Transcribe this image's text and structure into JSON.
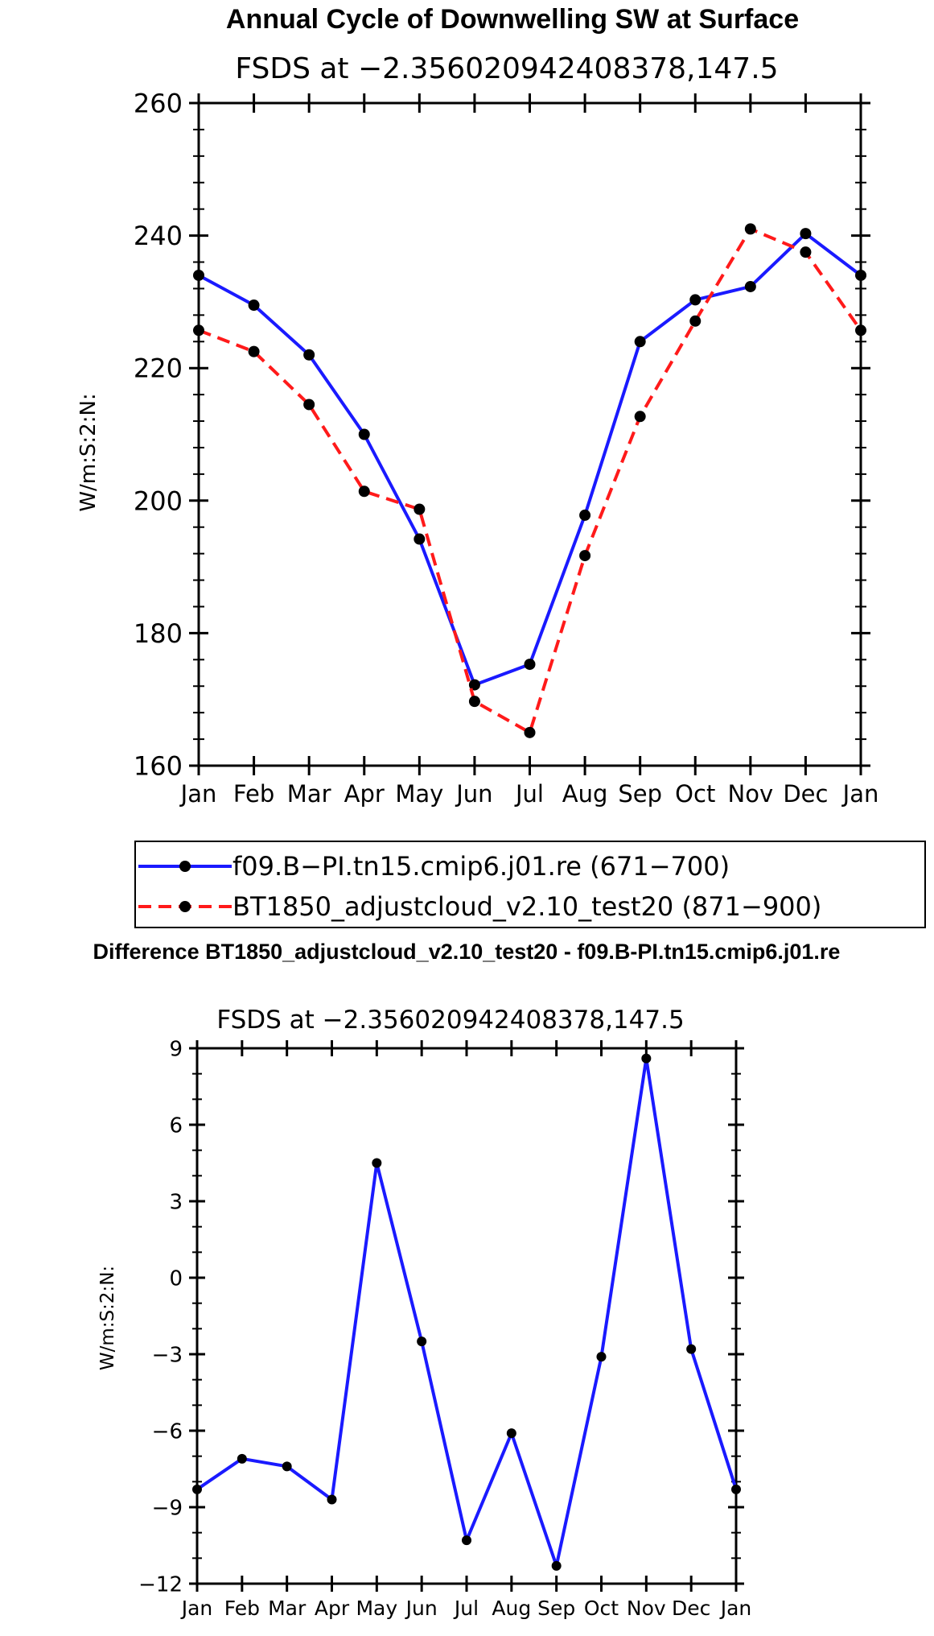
{
  "colors": {
    "series1": "#1a1aff",
    "series2": "#ff1a1a",
    "marker": "#000000",
    "diff": "#1a1aff"
  },
  "chart_data": [
    {
      "type": "line",
      "title": "Annual Cycle of Downwelling SW at Surface",
      "subtitle": "FSDS at −2.356020942408378,147.5",
      "ylabel": "W/m:S:2:N:",
      "ylim": [
        160,
        260
      ],
      "yticks": [
        "160",
        "180",
        "200",
        "220",
        "240",
        "260"
      ],
      "categories": [
        "Jan",
        "Feb",
        "Mar",
        "Apr",
        "May",
        "Jun",
        "Jul",
        "Aug",
        "Sep",
        "Oct",
        "Nov",
        "Dec",
        "Jan"
      ],
      "series": [
        {
          "name": "f09.B−PI.tn15.cmip6.j01.re (671−700)",
          "style": "solid",
          "values": [
            234.0,
            229.5,
            222.0,
            210.0,
            194.2,
            172.2,
            175.3,
            197.8,
            224.0,
            230.3,
            232.3,
            240.3,
            234.0
          ]
        },
        {
          "name": "BT1850_adjustcloud_v2.10_test20 (871−900)",
          "style": "dashed",
          "values": [
            225.7,
            222.5,
            214.5,
            201.4,
            198.7,
            169.7,
            165.0,
            191.7,
            212.7,
            227.1,
            241.0,
            237.5,
            225.7
          ]
        }
      ]
    },
    {
      "type": "line",
      "title": "Difference BT1850_adjustcloud_v2.10_test20 - f09.B-PI.tn15.cmip6.j01.re",
      "subtitle": "FSDS at −2.356020942408378,147.5",
      "ylabel": "W/m:S:2:N:",
      "ylim": [
        -12,
        9
      ],
      "yticks": [
        "−12",
        "−9",
        "−6",
        "−3",
        "0",
        "3",
        "6",
        "9"
      ],
      "categories": [
        "Jan",
        "Feb",
        "Mar",
        "Apr",
        "May",
        "Jun",
        "Jul",
        "Aug",
        "Sep",
        "Oct",
        "Nov",
        "Dec",
        "Jan"
      ],
      "series": [
        {
          "name": "difference",
          "style": "solid",
          "values": [
            -8.3,
            -7.1,
            -7.4,
            -8.7,
            4.5,
            -2.5,
            -10.3,
            -6.1,
            -11.3,
            -3.1,
            8.6,
            -2.8,
            -8.3
          ]
        }
      ]
    }
  ]
}
